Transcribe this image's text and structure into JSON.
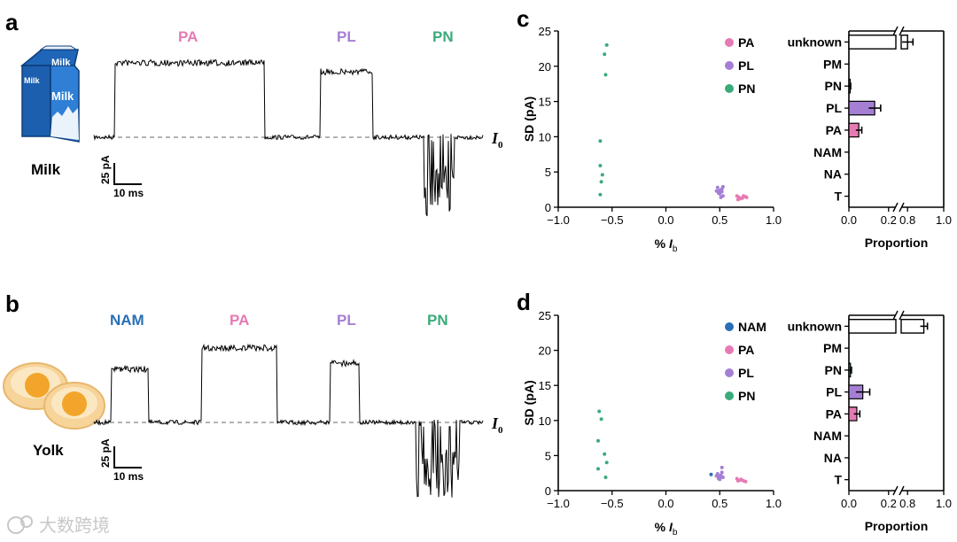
{
  "colors": {
    "NAM": "#2a6fb5",
    "PA": "#e67ab3",
    "PL": "#a57fd4",
    "PN": "#3aab7a",
    "trace": "#000000",
    "baseline": "#999999"
  },
  "panels": {
    "a": "a",
    "b": "b",
    "c": "c",
    "d": "d"
  },
  "milk": {
    "food_label": "Milk",
    "carton_text_top": "Milk",
    "carton_text_main": "Milk",
    "event_labels": [
      "PA",
      "PL",
      "PN"
    ],
    "baseline_label": "I",
    "baseline_sub": "0",
    "scale_current": "25 pA",
    "scale_time": "10 ms"
  },
  "yolk": {
    "food_label": "Yolk",
    "event_labels": [
      "NAM",
      "PA",
      "PL",
      "PN"
    ],
    "baseline_label": "I",
    "baseline_sub": "0",
    "scale_current": "25 pA",
    "scale_time": "10 ms"
  },
  "watermark": "大数跨境",
  "chart_data": [
    {
      "id": "c-scatter",
      "type": "scatter",
      "xlabel_main": "% I",
      "xlabel_sub": "b",
      "ylabel": "SD (pA)",
      "xlim": [
        -1.0,
        1.0
      ],
      "ylim": [
        0,
        25
      ],
      "xticks": [
        "−1.0",
        "−0.5",
        "0.0",
        "0.5",
        "1.0"
      ],
      "yticks": [
        "0",
        "5",
        "10",
        "15",
        "20",
        "25"
      ],
      "legend": [
        "PA",
        "PL",
        "PN"
      ],
      "series": [
        {
          "name": "PN",
          "points": [
            [
              -0.55,
              23
            ],
            [
              -0.57,
              21.7
            ],
            [
              -0.56,
              18.8
            ],
            [
              -0.61,
              9.4
            ],
            [
              -0.61,
              5.9
            ],
            [
              -0.59,
              4.6
            ],
            [
              -0.6,
              3.6
            ],
            [
              -0.61,
              1.8
            ]
          ]
        },
        {
          "name": "PL",
          "points": [
            [
              0.48,
              2.8
            ],
            [
              0.5,
              2.4
            ],
            [
              0.52,
              2.6
            ],
            [
              0.49,
              2.0
            ],
            [
              0.53,
              1.6
            ],
            [
              0.5,
              1.9
            ],
            [
              0.52,
              2.2
            ],
            [
              0.47,
              2.3
            ],
            [
              0.51,
              1.4
            ],
            [
              0.53,
              2.9
            ]
          ]
        },
        {
          "name": "PA",
          "points": [
            [
              0.66,
              1.6
            ],
            [
              0.68,
              1.4
            ],
            [
              0.71,
              1.3
            ],
            [
              0.74,
              1.5
            ],
            [
              0.69,
              1.2
            ],
            [
              0.72,
              1.6
            ],
            [
              0.67,
              1.1
            ],
            [
              0.75,
              1.4
            ]
          ]
        }
      ]
    },
    {
      "id": "c-bar",
      "type": "bar",
      "orientation": "horizontal",
      "xlabel": "Proportion",
      "categories": [
        "unknown",
        "PM",
        "PN",
        "PL",
        "PA",
        "NAM",
        "NA",
        "T"
      ],
      "values": [
        0.8,
        0,
        0.005,
        0.13,
        0.05,
        0,
        0,
        0
      ],
      "errors": [
        0.03,
        0,
        0.004,
        0.03,
        0.015,
        0,
        0,
        0
      ],
      "xticks": [
        "0.0",
        "0.2",
        "0.8",
        "1.0"
      ],
      "axis_break": true
    },
    {
      "id": "d-scatter",
      "type": "scatter",
      "xlabel_main": "% I",
      "xlabel_sub": "b",
      "ylabel": "SD (pA)",
      "xlim": [
        -1.0,
        1.0
      ],
      "ylim": [
        0,
        25
      ],
      "xticks": [
        "−1.0",
        "−0.5",
        "0.0",
        "0.5",
        "1.0"
      ],
      "yticks": [
        "0",
        "5",
        "10",
        "15",
        "20",
        "25"
      ],
      "legend": [
        "NAM",
        "PA",
        "PL",
        "PN"
      ],
      "series": [
        {
          "name": "PN",
          "points": [
            [
              -0.62,
              11.3
            ],
            [
              -0.6,
              10.2
            ],
            [
              -0.63,
              7.1
            ],
            [
              -0.57,
              5.2
            ],
            [
              -0.55,
              4.0
            ],
            [
              -0.63,
              3.1
            ],
            [
              -0.56,
              1.9
            ]
          ]
        },
        {
          "name": "NAM",
          "points": [
            [
              0.42,
              2.3
            ]
          ]
        },
        {
          "name": "PL",
          "points": [
            [
              0.48,
              2.4
            ],
            [
              0.5,
              2.0
            ],
            [
              0.52,
              2.6
            ],
            [
              0.49,
              1.7
            ],
            [
              0.53,
              1.9
            ],
            [
              0.51,
              2.2
            ],
            [
              0.47,
              2.1
            ],
            [
              0.52,
              3.3
            ],
            [
              0.5,
              1.6
            ]
          ]
        },
        {
          "name": "PA",
          "points": [
            [
              0.66,
              1.7
            ],
            [
              0.69,
              1.5
            ],
            [
              0.72,
              1.4
            ],
            [
              0.74,
              1.3
            ],
            [
              0.7,
              1.6
            ],
            [
              0.67,
              1.4
            ]
          ]
        }
      ]
    },
    {
      "id": "d-bar",
      "type": "bar",
      "orientation": "horizontal",
      "xlabel": "Proportion",
      "categories": [
        "unknown",
        "PM",
        "PN",
        "PL",
        "PA",
        "NAM",
        "NA",
        "T"
      ],
      "values": [
        0.89,
        0,
        0.008,
        0.07,
        0.04,
        0,
        0,
        0
      ],
      "errors": [
        0.02,
        0,
        0.005,
        0.035,
        0.015,
        0,
        0,
        0
      ],
      "xticks": [
        "0.0",
        "0.2",
        "0.8",
        "1.0"
      ],
      "axis_break": true
    }
  ]
}
